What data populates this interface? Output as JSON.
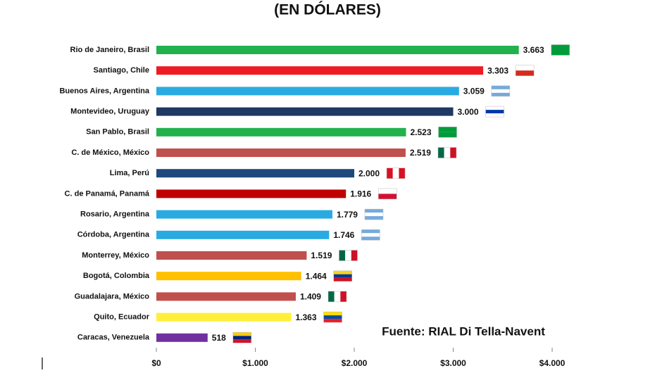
{
  "chart_data": {
    "type": "barh",
    "title": "(EN DÓLARES)",
    "annotation": "Fuente: RIAL Di Tella-Navent",
    "categories": [
      "Rio de Janeiro, Brasil",
      "Santiago, Chile",
      "Buenos Aires, Argentina",
      "Montevideo, Uruguay",
      "San Pablo, Brasil",
      "C. de México, México",
      "Lima, Perú",
      "C. de Panamá, Panamá",
      "Rosario, Argentina",
      "Córdoba, Argentina",
      "Monterrey, México",
      "Bogotá, Colombia",
      "Guadalajara, México",
      "Quito, Ecuador",
      "Caracas, Venezuela"
    ],
    "values": [
      3663,
      3303,
      3059,
      3000,
      2523,
      2519,
      2000,
      1916,
      1779,
      1746,
      1519,
      1464,
      1409,
      1363,
      518
    ],
    "value_labels": [
      "3.663",
      "3.303",
      "3.059",
      "3.000",
      "2.523",
      "2.519",
      "2.000",
      "1.916",
      "1.779",
      "1.746",
      "1.519",
      "1.464",
      "1.409",
      "1.363",
      "518"
    ],
    "colors": [
      "#22b14c",
      "#ed1c24",
      "#29abe2",
      "#1f3864",
      "#22b14c",
      "#c0504d",
      "#1f497d",
      "#c00000",
      "#29abe2",
      "#29abe2",
      "#c0504d",
      "#ffc000",
      "#c0504d",
      "#ffef3a",
      "#7030a0"
    ],
    "xlim": [
      0,
      4000
    ],
    "xticks": [
      {
        "value": 0,
        "label": "$0"
      },
      {
        "value": 1000,
        "label": "$1.000"
      },
      {
        "value": 2000,
        "label": "$2.000"
      },
      {
        "value": 3000,
        "label": "$3.000"
      },
      {
        "value": 4000,
        "label": "$4.000"
      }
    ],
    "grid": false
  }
}
